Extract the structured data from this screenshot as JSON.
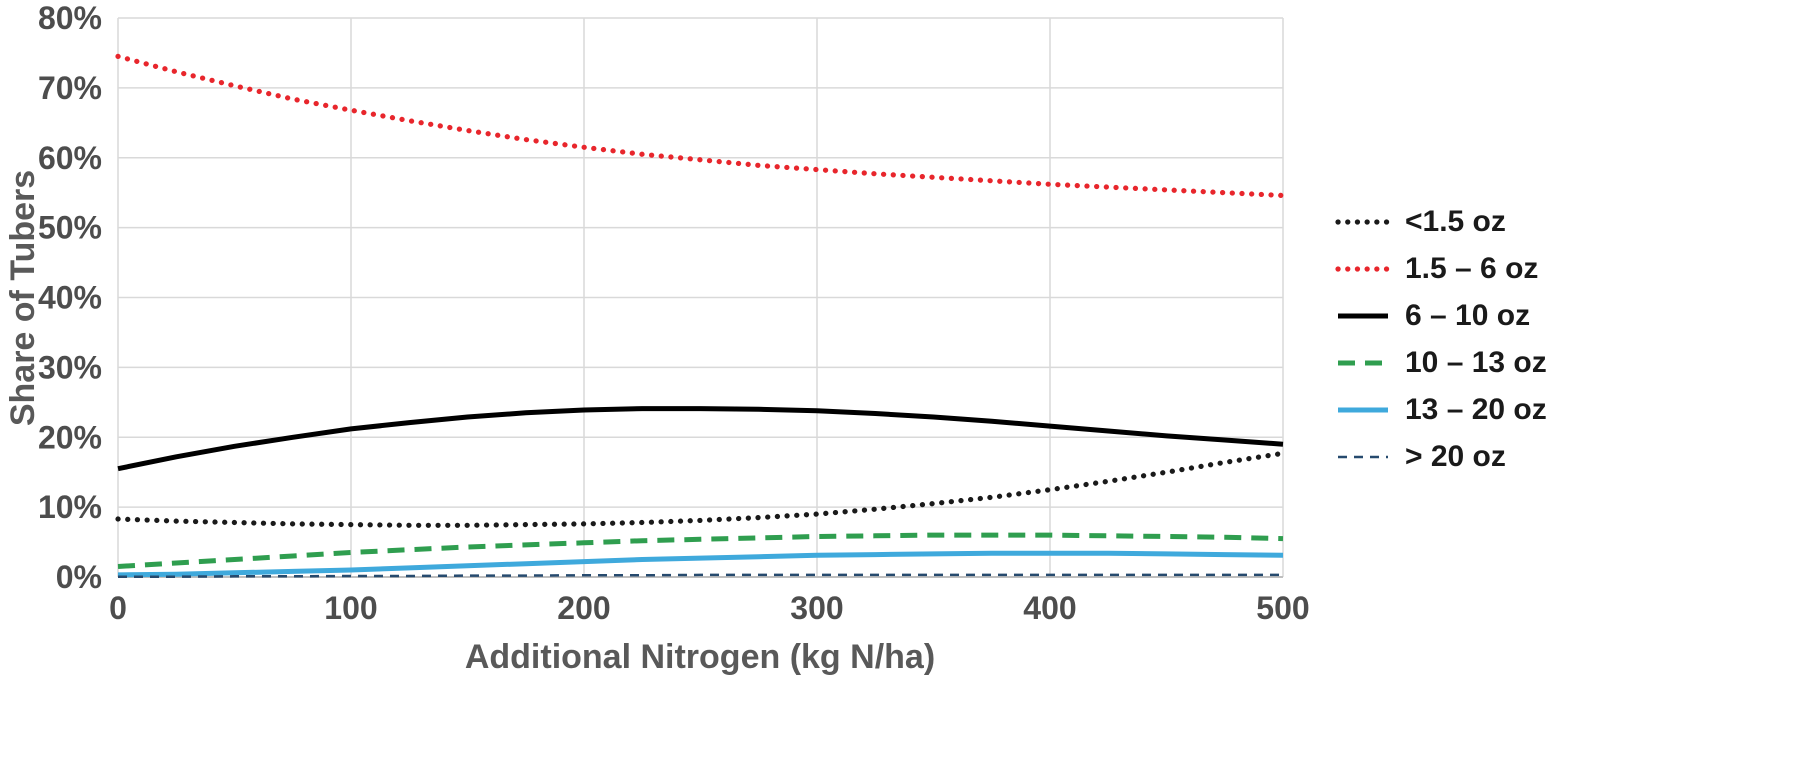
{
  "chart_data": {
    "type": "line",
    "title": "",
    "xlabel": "Additional Nitrogen (kg N/ha)",
    "ylabel": "Share of Tubers",
    "xlim": [
      0,
      500
    ],
    "ylim": [
      0,
      80
    ],
    "xticks": [
      0,
      100,
      200,
      300,
      400,
      500
    ],
    "yticks": [
      0,
      10,
      20,
      30,
      40,
      50,
      60,
      70,
      80
    ],
    "ytick_suffix": "%",
    "grid": true,
    "legend_position": "right",
    "x": [
      0,
      25,
      50,
      75,
      100,
      125,
      150,
      175,
      200,
      225,
      250,
      275,
      300,
      325,
      350,
      375,
      400,
      425,
      450,
      475,
      500
    ],
    "series": [
      {
        "name": "<1.5 oz",
        "color": "#1a1a1a",
        "style": "dotted",
        "values": [
          8.3,
          8.0,
          7.8,
          7.6,
          7.5,
          7.4,
          7.4,
          7.5,
          7.6,
          7.8,
          8.1,
          8.5,
          9.0,
          9.7,
          10.5,
          11.4,
          12.5,
          13.7,
          15.0,
          16.4,
          17.7
        ]
      },
      {
        "name": "1.5 – 6 oz",
        "color": "#e8262c",
        "style": "dotted",
        "values": [
          74.5,
          72.3,
          70.3,
          68.4,
          66.8,
          65.3,
          63.9,
          62.6,
          61.5,
          60.5,
          59.7,
          58.9,
          58.3,
          57.7,
          57.2,
          56.7,
          56.2,
          55.8,
          55.4,
          55.0,
          54.6
        ]
      },
      {
        "name": "6 – 10 oz",
        "color": "#000000",
        "style": "solid",
        "values": [
          15.5,
          17.2,
          18.7,
          20.0,
          21.2,
          22.1,
          22.9,
          23.5,
          23.9,
          24.1,
          24.1,
          24.0,
          23.8,
          23.4,
          22.9,
          22.3,
          21.6,
          20.9,
          20.2,
          19.6,
          19.0
        ]
      },
      {
        "name": "10 – 13 oz",
        "color": "#2f9e4f",
        "style": "dashed",
        "values": [
          1.5,
          2.0,
          2.5,
          3.0,
          3.5,
          3.9,
          4.3,
          4.6,
          4.9,
          5.2,
          5.4,
          5.6,
          5.8,
          5.9,
          6.0,
          6.0,
          6.0,
          5.9,
          5.8,
          5.7,
          5.5
        ]
      },
      {
        "name": "13 – 20 oz",
        "color": "#3fa9dc",
        "style": "solid",
        "values": [
          0.3,
          0.4,
          0.6,
          0.8,
          1.0,
          1.3,
          1.6,
          1.9,
          2.2,
          2.5,
          2.7,
          2.9,
          3.1,
          3.2,
          3.3,
          3.4,
          3.4,
          3.4,
          3.3,
          3.2,
          3.1
        ]
      },
      {
        "name": "> 20 oz",
        "color": "#264a6e",
        "style": "thin-dashed",
        "values": [
          0.05,
          0.05,
          0.1,
          0.1,
          0.15,
          0.15,
          0.2,
          0.2,
          0.25,
          0.25,
          0.3,
          0.3,
          0.3,
          0.3,
          0.3,
          0.3,
          0.3,
          0.3,
          0.3,
          0.3,
          0.3
        ]
      }
    ]
  }
}
